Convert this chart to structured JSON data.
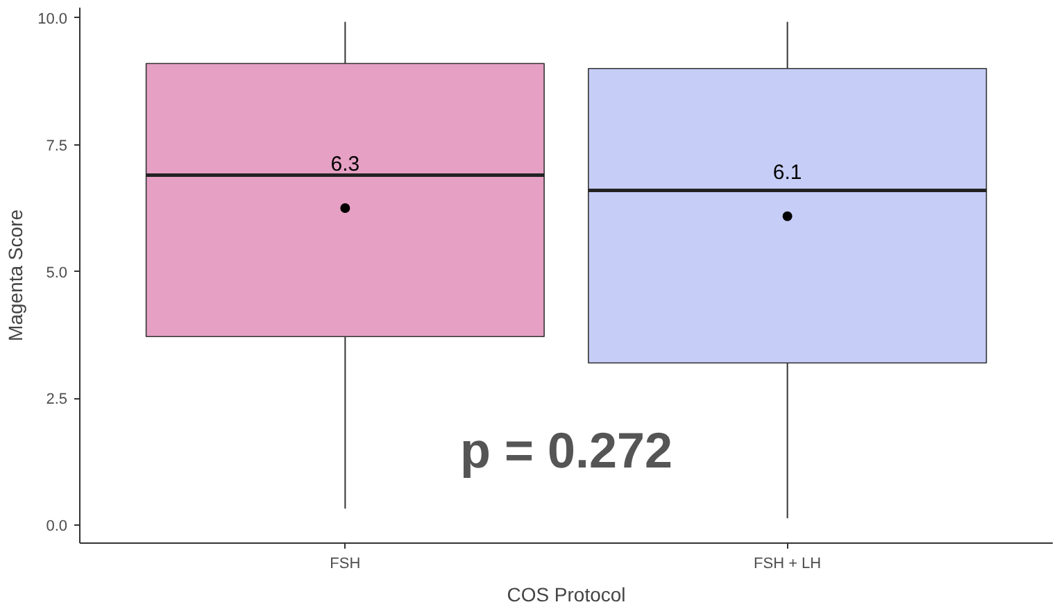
{
  "chart_data": {
    "type": "box",
    "xlabel": "COS Protocol",
    "ylabel": "Magenta Score",
    "categories": [
      "FSH",
      "FSH + LH"
    ],
    "colors": [
      "#e6a0c4",
      "#c6cdf7"
    ],
    "boxes": [
      {
        "low": 0.33,
        "q1": 3.72,
        "median": 6.9,
        "q3": 9.1,
        "high": 9.92,
        "mean": 6.25
      },
      {
        "low": 0.14,
        "q1": 3.2,
        "median": 6.6,
        "q3": 9.0,
        "high": 9.92,
        "mean": 6.09
      }
    ],
    "ylim": [
      -0.35,
      10.2
    ],
    "yticks": [
      {
        "value": 0,
        "label": "0.0"
      },
      {
        "value": 2.5,
        "label": "2.5"
      },
      {
        "value": 5,
        "label": "5.0"
      },
      {
        "value": 7.5,
        "label": "7.5"
      },
      {
        "value": 10,
        "label": "10.0"
      }
    ],
    "grid": false,
    "annotations": [
      "6.3",
      "6.1",
      "p = 0.272"
    ]
  }
}
